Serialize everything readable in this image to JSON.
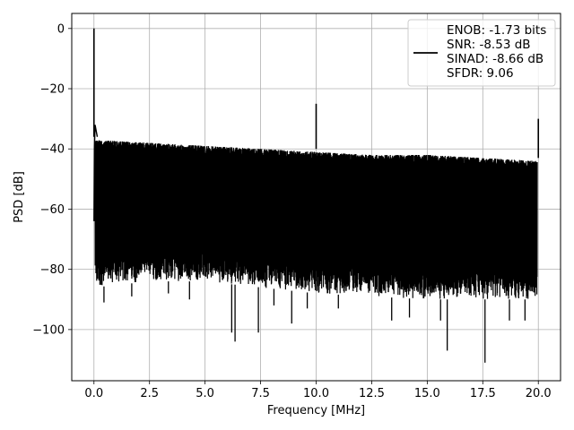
{
  "chart_data": {
    "type": "line",
    "title": "",
    "xlabel": "Frequency [MHz]",
    "ylabel": "PSD [dB]",
    "xlim": [
      -1.0,
      21.0
    ],
    "ylim": [
      -117,
      5
    ],
    "xticks": [
      0.0,
      2.5,
      5.0,
      7.5,
      10.0,
      12.5,
      15.0,
      17.5,
      20.0
    ],
    "xtick_labels": [
      "0.0",
      "2.5",
      "5.0",
      "7.5",
      "10.0",
      "12.5",
      "15.0",
      "17.5",
      "20.0"
    ],
    "yticks": [
      0,
      -20,
      -40,
      -60,
      -80,
      -100
    ],
    "ytick_labels": [
      "0",
      "−20",
      "−40",
      "−60",
      "−80",
      "−100"
    ],
    "grid": true,
    "legend_placement": "top-right",
    "line_color": "#000000",
    "series": [
      {
        "legend_lines": [
          "ENOB: -1.73 bits",
          "SNR: -8.53 dB",
          "SINAD: -8.66 dB",
          "SFDR: 9.06"
        ],
        "noise_floor": {
          "x": [
            0.05,
            2.5,
            5.0,
            7.5,
            10.0,
            12.5,
            15.0,
            17.5,
            19.95
          ],
          "upper": [
            -36,
            -37,
            -38,
            -39,
            -40,
            -41,
            -41,
            -42,
            -43
          ],
          "lower": [
            -86,
            -84,
            -84,
            -86,
            -88,
            -89,
            -90,
            -90,
            -90
          ]
        },
        "peaks": [
          {
            "x": 0.0,
            "y": 0.0
          },
          {
            "x": 10.0,
            "y": -25.0
          },
          {
            "x": 20.0,
            "y": -30.0
          }
        ],
        "deep_dips": [
          {
            "x": 0.45,
            "y": -91
          },
          {
            "x": 1.7,
            "y": -89
          },
          {
            "x": 3.35,
            "y": -88
          },
          {
            "x": 4.3,
            "y": -90
          },
          {
            "x": 6.2,
            "y": -101
          },
          {
            "x": 6.35,
            "y": -104
          },
          {
            "x": 7.4,
            "y": -101
          },
          {
            "x": 8.1,
            "y": -92
          },
          {
            "x": 8.9,
            "y": -98
          },
          {
            "x": 9.6,
            "y": -93
          },
          {
            "x": 11.0,
            "y": -93
          },
          {
            "x": 13.4,
            "y": -97
          },
          {
            "x": 14.2,
            "y": -96
          },
          {
            "x": 15.6,
            "y": -97
          },
          {
            "x": 15.9,
            "y": -107
          },
          {
            "x": 17.6,
            "y": -111
          },
          {
            "x": 18.7,
            "y": -97
          },
          {
            "x": 19.4,
            "y": -97
          }
        ]
      }
    ]
  }
}
